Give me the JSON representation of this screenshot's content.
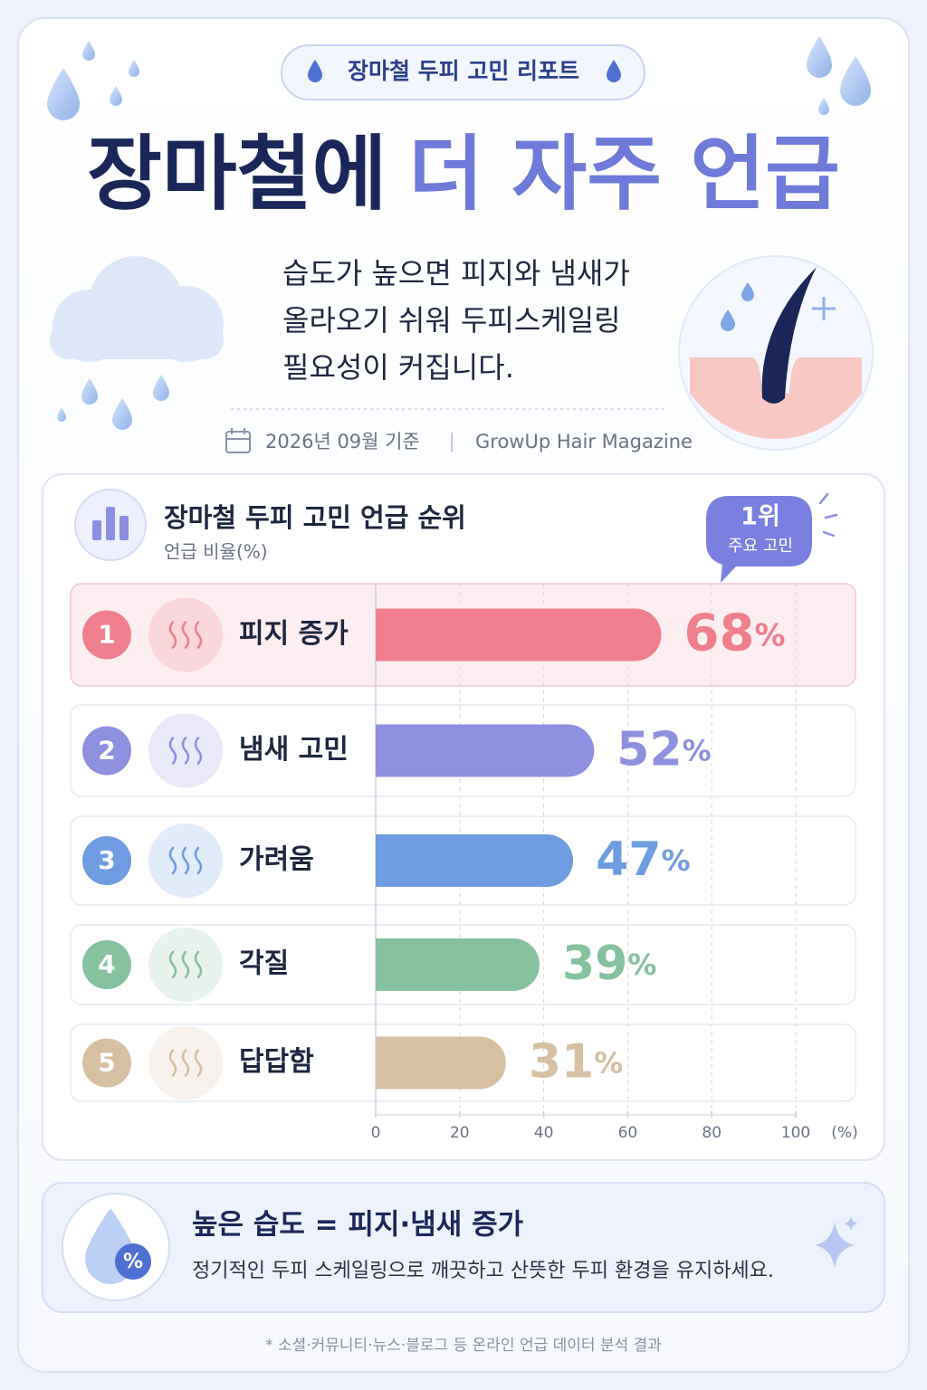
{
  "header": {
    "badge": "장마철 두피 고민 리포트",
    "title_dark": "장마철에",
    "title_accent": "더 자주 언급",
    "description": [
      "습도가 높으면 피지와 냄새가",
      "올라오기 쉬워 두피스케일링",
      "필요성이 커집니다."
    ],
    "date": "2026년 09월 기준",
    "source": "GrowUp Hair Magazine"
  },
  "chart_data": {
    "type": "bar",
    "orientation": "horizontal",
    "title": "장마철 두피 고민 언급 순위",
    "subtitle": "언급 비율(%)",
    "ranks": [
      "1",
      "2",
      "3",
      "4",
      "5"
    ],
    "categories": [
      "피지 증가",
      "냄새 고민",
      "가려움",
      "각질",
      "답답함"
    ],
    "values": [
      68,
      52,
      47,
      39,
      31
    ],
    "value_labels": [
      "68%",
      "52%",
      "47%",
      "39%",
      "31%"
    ],
    "colors": [
      "#ef7f8f",
      "#8f8fe0",
      "#6f9ce0",
      "#86c1a0",
      "#d6bfa3"
    ],
    "xlim": [
      0,
      100
    ],
    "xticks": [
      0,
      20,
      40,
      60,
      80,
      100
    ],
    "x_unit": "(%)",
    "grid": true,
    "callout": {
      "rank": "1위",
      "text": "주요 고민"
    }
  },
  "summary": {
    "title": "높은 습도 = 피지·냄새 증가",
    "text": "정기적인 두피 스케일링으로 깨끗하고 산뜻한 두피 환경을 유지하세요."
  },
  "footnote": "* 소셜·커뮤니티·뉴스·블로그 등 온라인 언급 데이터 분석 결과"
}
